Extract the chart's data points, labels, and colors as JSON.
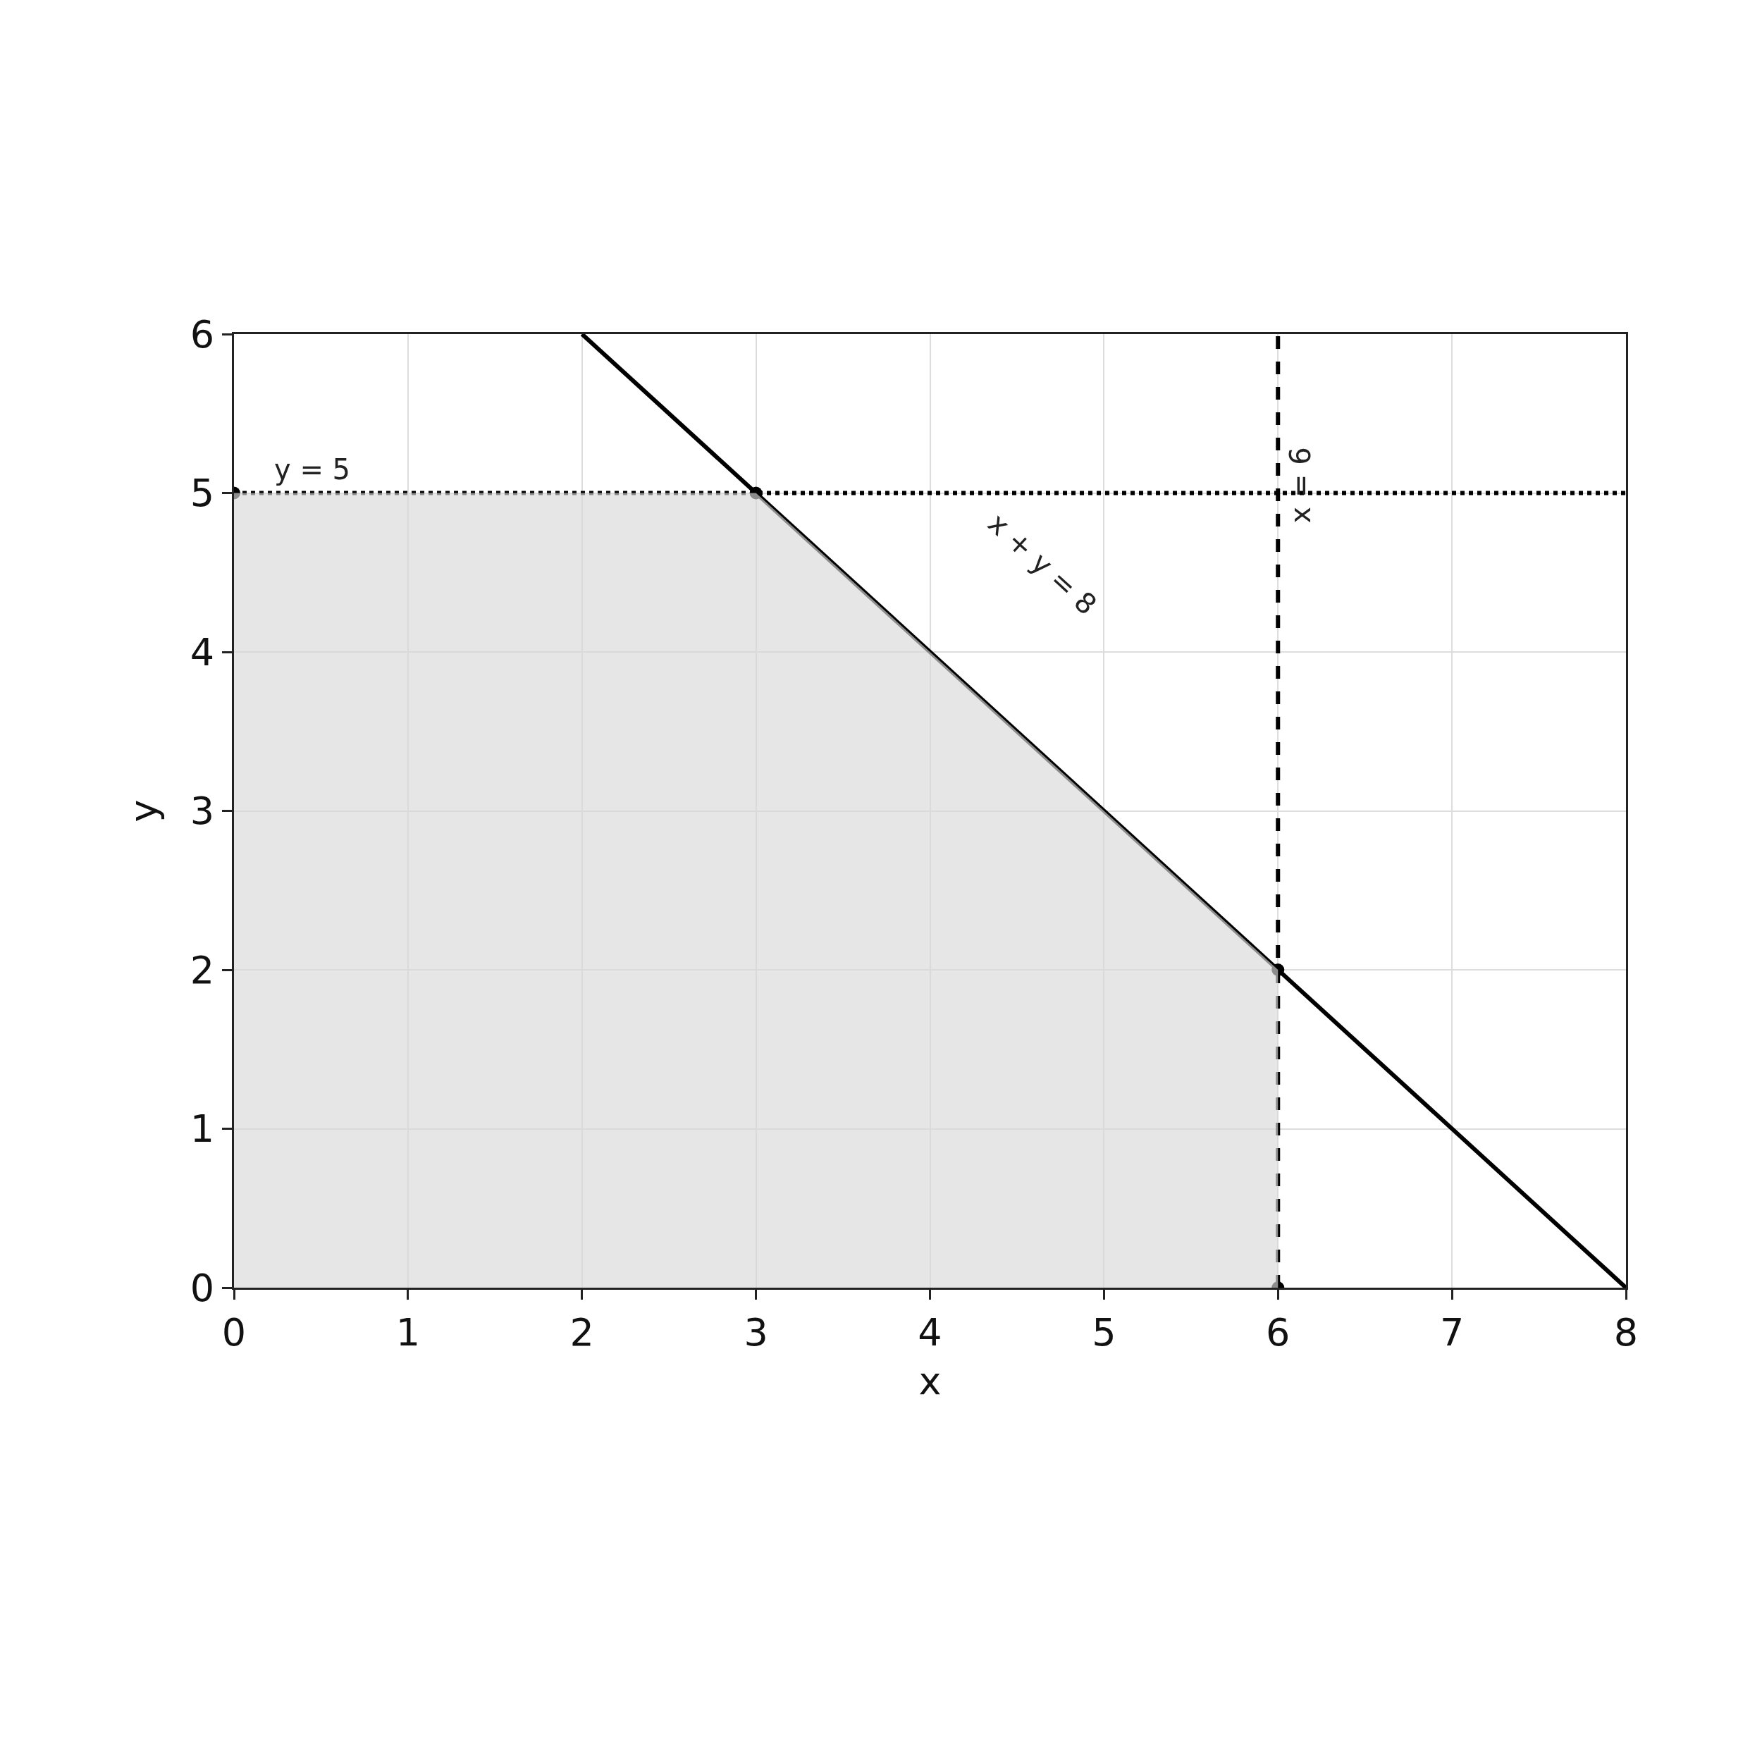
{
  "chart_data": {
    "type": "line",
    "xlabel": "x",
    "ylabel": "y",
    "xlim": [
      0,
      8
    ],
    "ylim": [
      0,
      6
    ],
    "xticks": [
      0,
      1,
      2,
      3,
      4,
      5,
      6,
      7,
      8
    ],
    "yticks": [
      0,
      1,
      2,
      3,
      4,
      5,
      6
    ],
    "grid": true,
    "series": [
      {
        "type": "area",
        "color": "#d9d9d9",
        "x": [
          0,
          3,
          6,
          6
        ],
        "values": [
          5,
          5,
          2,
          0
        ]
      },
      {
        "color": "#000000",
        "x": [
          2,
          8
        ],
        "values": [
          6,
          0
        ],
        "line_style": "solid"
      },
      {
        "color": "#000000",
        "x": [
          0,
          8
        ],
        "values": [
          5,
          5
        ],
        "line_style": "dotted"
      },
      {
        "color": "#000000",
        "x": [
          6,
          6
        ],
        "values": [
          0,
          6
        ],
        "line_style": "dashed"
      },
      {
        "type": "scatter",
        "color": "#000000",
        "x": [
          0,
          3,
          6,
          6
        ],
        "values": [
          5,
          5,
          2,
          0
        ],
        "marker": "circle"
      }
    ],
    "annotations": [
      {
        "text": "y = 5",
        "x": 0.45,
        "y": 5
      },
      {
        "text": "x = 6",
        "x": 6,
        "y": 5.05
      },
      {
        "text": "x + y = 8",
        "x": 4.1,
        "y": 3.9
      }
    ]
  }
}
